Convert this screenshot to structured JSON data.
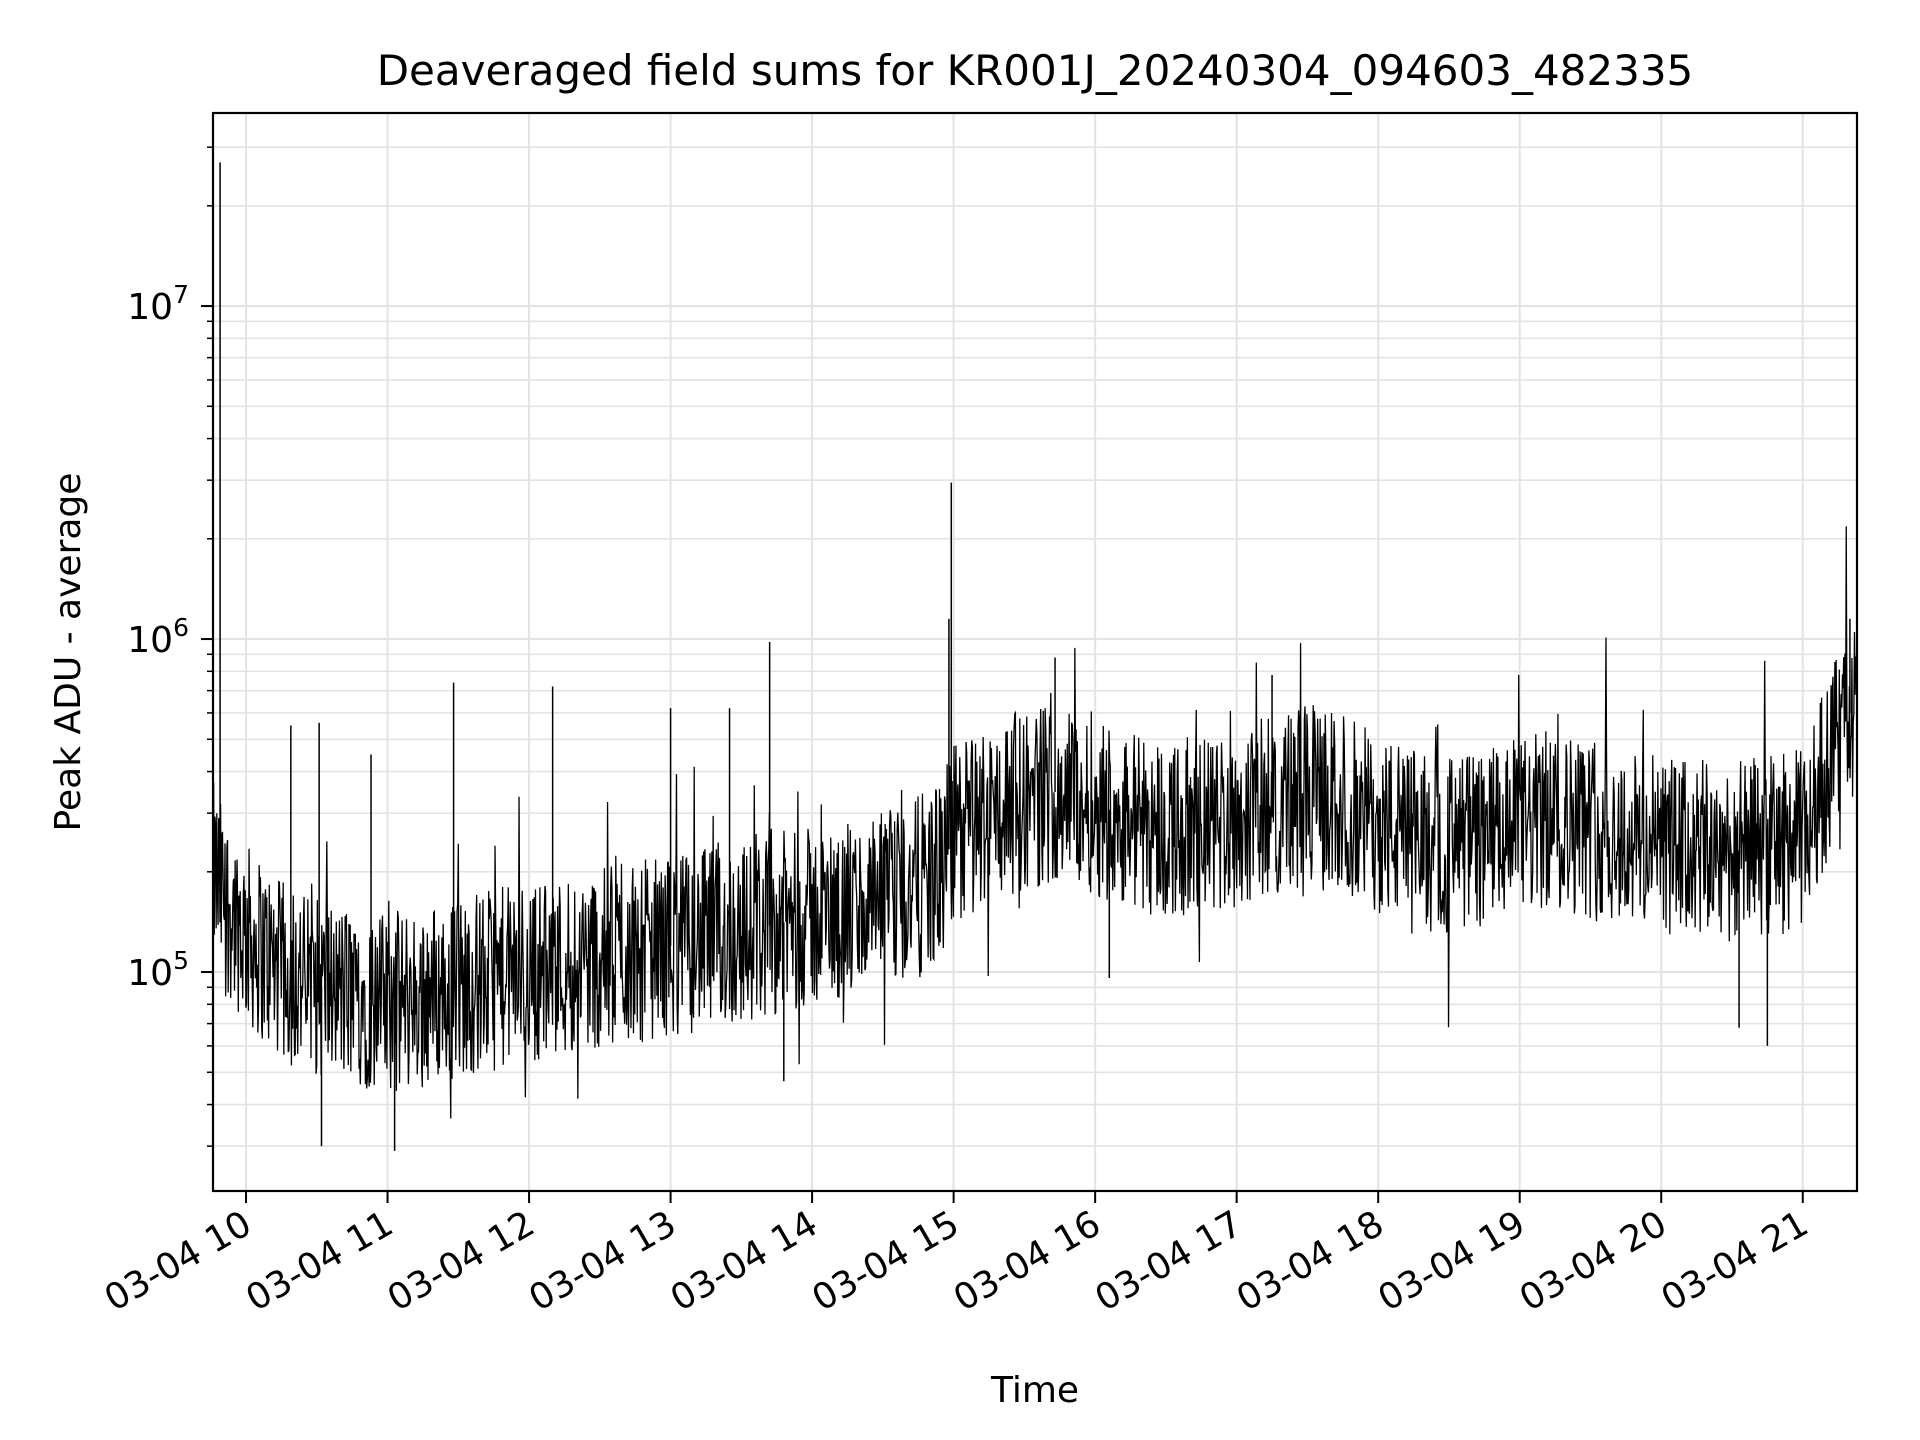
{
  "chart_data": {
    "type": "line",
    "title": "Deaveraged field sums for KR001J_20240304_094603_482335",
    "xlabel": "Time",
    "ylabel": "Peak ADU - average",
    "yscale": "log",
    "ylim": [
      22000,
      38000000
    ],
    "xlim": [
      "2024-03-04 09:46",
      "2024-03-04 21:23"
    ],
    "grid": true,
    "line_color": "#000000",
    "x_ticks": [
      {
        "t": "2024-03-04 10:00",
        "label": "03-04 10"
      },
      {
        "t": "2024-03-04 11:00",
        "label": "03-04 11"
      },
      {
        "t": "2024-03-04 12:00",
        "label": "03-04 12"
      },
      {
        "t": "2024-03-04 13:00",
        "label": "03-04 13"
      },
      {
        "t": "2024-03-04 14:00",
        "label": "03-04 14"
      },
      {
        "t": "2024-03-04 15:00",
        "label": "03-04 15"
      },
      {
        "t": "2024-03-04 16:00",
        "label": "03-04 16"
      },
      {
        "t": "2024-03-04 17:00",
        "label": "03-04 17"
      },
      {
        "t": "2024-03-04 18:00",
        "label": "03-04 18"
      },
      {
        "t": "2024-03-04 19:00",
        "label": "03-04 19"
      },
      {
        "t": "2024-03-04 20:00",
        "label": "03-04 20"
      },
      {
        "t": "2024-03-04 21:00",
        "label": "03-04 21"
      }
    ],
    "y_ticks": [
      {
        "value": 100000,
        "base": "10",
        "exp": "5"
      },
      {
        "value": 1000000,
        "base": "10",
        "exp": "6"
      },
      {
        "value": 10000000,
        "base": "10",
        "exp": "7"
      }
    ],
    "x": [
      "2024-03-04 09:46",
      "2024-03-04 09:50",
      "2024-03-04 10:00",
      "2024-03-04 10:15",
      "2024-03-04 10:30",
      "2024-03-04 10:45",
      "2024-03-04 11:00",
      "2024-03-04 11:15",
      "2024-03-04 11:30",
      "2024-03-04 11:45",
      "2024-03-04 12:00",
      "2024-03-04 12:15",
      "2024-03-04 12:30",
      "2024-03-04 12:45",
      "2024-03-04 13:00",
      "2024-03-04 13:15",
      "2024-03-04 13:30",
      "2024-03-04 13:45",
      "2024-03-04 14:00",
      "2024-03-04 14:15",
      "2024-03-04 14:30",
      "2024-03-04 14:45",
      "2024-03-04 14:55",
      "2024-03-04 15:00",
      "2024-03-04 15:15",
      "2024-03-04 15:30",
      "2024-03-04 15:45",
      "2024-03-04 16:00",
      "2024-03-04 16:15",
      "2024-03-04 16:30",
      "2024-03-04 16:45",
      "2024-03-04 17:00",
      "2024-03-04 17:15",
      "2024-03-04 17:30",
      "2024-03-04 17:45",
      "2024-03-04 18:00",
      "2024-03-04 18:15",
      "2024-03-04 18:30",
      "2024-03-04 18:45",
      "2024-03-04 19:00",
      "2024-03-04 19:15",
      "2024-03-04 19:30",
      "2024-03-04 19:45",
      "2024-03-04 20:00",
      "2024-03-04 20:15",
      "2024-03-04 20:30",
      "2024-03-04 20:45",
      "2024-03-04 21:00",
      "2024-03-04 21:10",
      "2024-03-04 21:20"
    ],
    "y": [
      200000,
      170000,
      130000,
      100000,
      90000,
      85000,
      80000,
      85000,
      90000,
      95000,
      100000,
      105000,
      110000,
      115000,
      120000,
      125000,
      130000,
      140000,
      145000,
      150000,
      160000,
      180000,
      200000,
      260000,
      300000,
      330000,
      350000,
      320000,
      290000,
      270000,
      270000,
      290000,
      320000,
      340000,
      320000,
      280000,
      250000,
      240000,
      250000,
      270000,
      290000,
      270000,
      250000,
      240000,
      230000,
      230000,
      240000,
      250000,
      400000,
      600000
    ],
    "spikes": [
      {
        "t": "2024-03-04 09:49",
        "value": 27000000
      },
      {
        "t": "2024-03-04 10:19",
        "value": 550000
      },
      {
        "t": "2024-03-04 10:31",
        "value": 560000
      },
      {
        "t": "2024-03-04 10:53",
        "value": 450000
      },
      {
        "t": "2024-03-04 11:28",
        "value": 740000
      },
      {
        "t": "2024-03-04 12:10",
        "value": 720000
      },
      {
        "t": "2024-03-04 13:00",
        "value": 620000
      },
      {
        "t": "2024-03-04 13:25",
        "value": 620000
      },
      {
        "t": "2024-03-04 13:42",
        "value": 980000
      },
      {
        "t": "2024-03-04 14:59",
        "value": 2950000
      },
      {
        "t": "2024-03-04 14:58",
        "value": 1150000
      },
      {
        "t": "2024-03-04 15:43",
        "value": 880000
      },
      {
        "t": "2024-03-04 17:15",
        "value": 780000
      },
      {
        "t": "2024-03-04 21:20",
        "value": 1150000
      }
    ],
    "dips": [
      {
        "t": "2024-03-04 10:32",
        "value": 30000
      },
      {
        "t": "2024-03-04 11:03",
        "value": 29000
      },
      {
        "t": "2024-03-04 13:48",
        "value": 47000
      },
      {
        "t": "2024-03-04 16:06",
        "value": 96000
      },
      {
        "t": "2024-03-04 20:33",
        "value": 68000
      },
      {
        "t": "2024-03-04 20:45",
        "value": 60000
      }
    ]
  }
}
